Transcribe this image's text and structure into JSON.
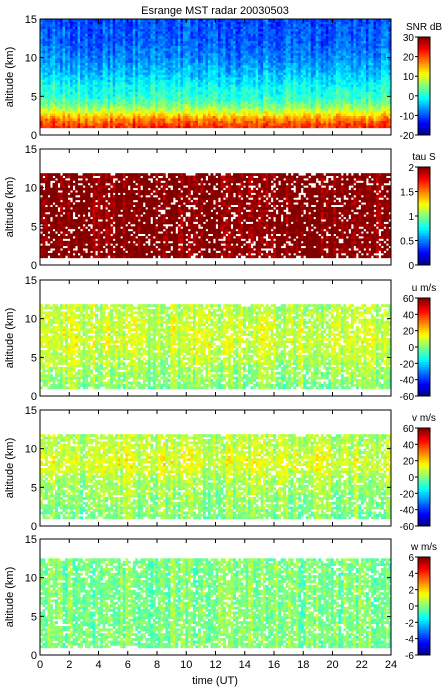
{
  "chart_data": {
    "title": "Esrange MST radar 20030503",
    "xlabel": "time (UT)",
    "xlim": [
      0,
      24
    ],
    "x_ticks": [
      "0",
      "2",
      "4",
      "6",
      "8",
      "10",
      "12",
      "14",
      "16",
      "18",
      "20",
      "22",
      "24"
    ],
    "panels": [
      {
        "type": "heatmap",
        "ylabel": "altitude (km)",
        "ylim": [
          0,
          15
        ],
        "y_ticks": [
          "0",
          "5",
          "10",
          "15"
        ],
        "colorbar_label": "SNR dB",
        "colorbar_range": [
          -20,
          30
        ],
        "colorbar_ticks": [
          "-20",
          "-10",
          "0",
          "10",
          "20",
          "30"
        ],
        "coverage": [
          1,
          15
        ],
        "profile": [
          [
            1,
            22
          ],
          [
            2,
            18
          ],
          [
            3,
            10
          ],
          [
            4,
            4
          ],
          [
            5,
            1
          ],
          [
            6,
            0
          ],
          [
            8,
            -4
          ],
          [
            10,
            -7
          ],
          [
            12,
            -9
          ],
          [
            15,
            -10
          ]
        ]
      },
      {
        "type": "heatmap",
        "ylabel": "altitude (km)",
        "ylim": [
          0,
          15
        ],
        "y_ticks": [
          "0",
          "5",
          "10",
          "15"
        ],
        "colorbar_label": "tau S",
        "colorbar_range": [
          0,
          2
        ],
        "colorbar_ticks": [
          "0",
          "0.5",
          "1",
          "1.5",
          "2"
        ],
        "coverage": [
          1,
          12
        ],
        "profile": [
          [
            1,
            2
          ],
          [
            12,
            2
          ]
        ]
      },
      {
        "type": "heatmap",
        "ylabel": "altitude (km)",
        "ylim": [
          0,
          15
        ],
        "y_ticks": [
          "0",
          "5",
          "10",
          "15"
        ],
        "colorbar_label": "u m/s",
        "colorbar_range": [
          -60,
          60
        ],
        "colorbar_ticks": [
          "-60",
          "-40",
          "-20",
          "0",
          "20",
          "40",
          "60"
        ],
        "coverage": [
          1,
          12
        ],
        "profile": [
          [
            1,
            0
          ],
          [
            4,
            5
          ],
          [
            7,
            10
          ],
          [
            10,
            8
          ],
          [
            12,
            5
          ]
        ]
      },
      {
        "type": "heatmap",
        "ylabel": "altitude (km)",
        "ylim": [
          0,
          15
        ],
        "y_ticks": [
          "0",
          "5",
          "10",
          "15"
        ],
        "colorbar_label": "v m/s",
        "colorbar_range": [
          -60,
          60
        ],
        "colorbar_ticks": [
          "-60",
          "-40",
          "-20",
          "0",
          "20",
          "40",
          "60"
        ],
        "coverage": [
          1,
          12
        ],
        "profile": [
          [
            1,
            0
          ],
          [
            6,
            5
          ],
          [
            8,
            12
          ],
          [
            10,
            8
          ],
          [
            12,
            5
          ]
        ]
      },
      {
        "type": "heatmap",
        "ylabel": "altitude (km)",
        "ylim": [
          0,
          15
        ],
        "y_ticks": [
          "0",
          "5",
          "10",
          "15"
        ],
        "colorbar_label": "w m/s",
        "colorbar_range": [
          -6,
          6
        ],
        "colorbar_ticks": [
          "-6",
          "-4",
          "-2",
          "0",
          "2",
          "4",
          "6"
        ],
        "coverage": [
          1,
          12.5
        ],
        "profile": [
          [
            1,
            0
          ],
          [
            12.5,
            0
          ]
        ]
      }
    ]
  }
}
